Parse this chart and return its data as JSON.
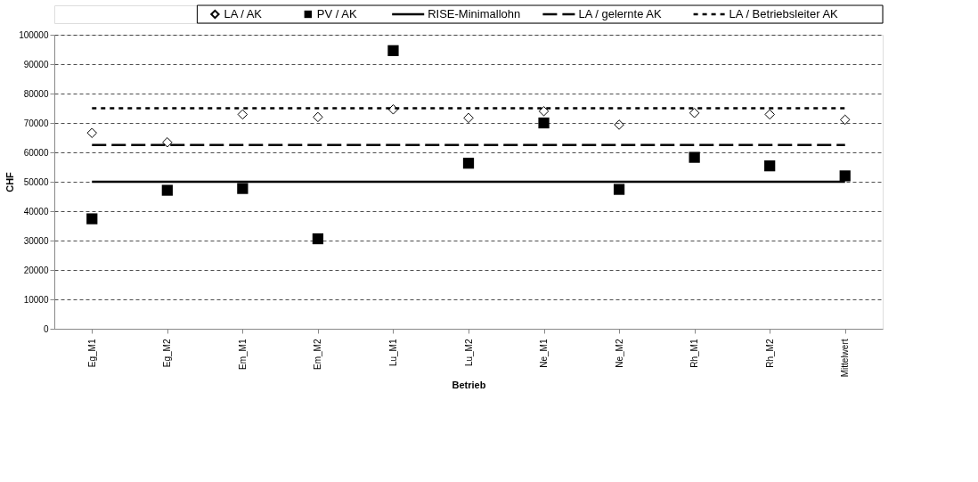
{
  "chart_data": {
    "type": "scatter",
    "xlabel": "Betrieb",
    "ylabel": "CHF",
    "categories": [
      "Eg_M1",
      "Eg_M2",
      "Em_M1",
      "Em_M2",
      "Lu_M1",
      "Lu_M2",
      "Ne_M1",
      "Ne_M2",
      "Rh_M1",
      "Rh_M2",
      "Mittelwert"
    ],
    "series": [
      {
        "name": "LA / AK",
        "marker": "diamond",
        "color": "#000000",
        "values": [
          66600,
          63400,
          72900,
          72000,
          74600,
          71700,
          74000,
          69400,
          73400,
          72900,
          71100
        ]
      },
      {
        "name": "PV / AK",
        "marker": "square",
        "color": "#000000",
        "values": [
          37400,
          47100,
          47700,
          30600,
          94600,
          56300,
          70000,
          47400,
          58300,
          55400,
          52000
        ]
      },
      {
        "name": "RISE-Minimallohn",
        "type": "line",
        "line_style": "solid",
        "color": "#000000",
        "values": [
          50000,
          50000,
          50000,
          50000,
          50000,
          50000,
          50000,
          50000,
          50000,
          50000,
          50000
        ]
      },
      {
        "name": "LA / gelernte AK",
        "type": "line",
        "line_style": "dashed",
        "color": "#000000",
        "values": [
          62500,
          62500,
          62500,
          62500,
          62500,
          62500,
          62500,
          62500,
          62500,
          62500,
          62500
        ]
      },
      {
        "name": "LA / Betriebsleiter AK",
        "type": "line",
        "line_style": "dotted",
        "color": "#000000",
        "values": [
          75000,
          75000,
          75000,
          75000,
          75000,
          75000,
          75000,
          75000,
          75000,
          75000,
          75000
        ]
      }
    ],
    "ylim": [
      0,
      100000
    ],
    "yticks": [
      0,
      10000,
      20000,
      30000,
      40000,
      50000,
      60000,
      70000,
      80000,
      90000,
      100000
    ],
    "grid": "y",
    "legend": "top"
  }
}
